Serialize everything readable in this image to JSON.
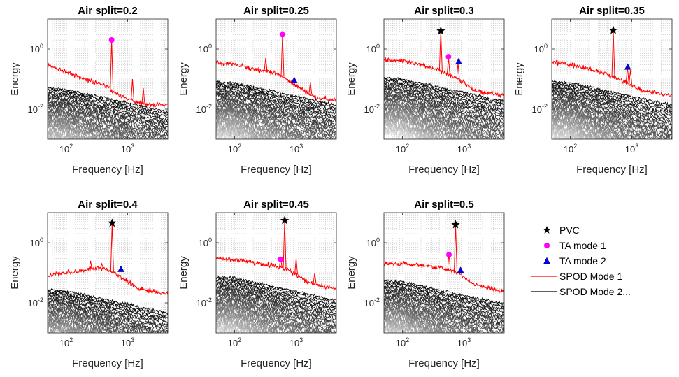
{
  "chart_data": [
    {
      "type": "line",
      "title": "Air split=0.2",
      "xlabel": "Frequency [Hz]",
      "ylabel": "Energy",
      "xscale": "log",
      "yscale": "log",
      "xlim": [
        50,
        4500
      ],
      "ylim": [
        0.001,
        10
      ],
      "xticks": [
        "10^2",
        "10^3"
      ],
      "yticks": [
        "10^-2",
        "10^0"
      ],
      "grid": true,
      "spod_mode_1": {
        "base": [
          [
            50,
            0.28
          ],
          [
            100,
            0.18
          ],
          [
            200,
            0.1
          ],
          [
            400,
            0.065
          ],
          [
            500,
            0.05
          ],
          [
            700,
            0.03
          ],
          [
            1000,
            0.022
          ],
          [
            2000,
            0.014
          ],
          [
            4000,
            0.014
          ]
        ],
        "peaks": [
          [
            550,
            2.0
          ],
          [
            1200,
            0.1
          ],
          [
            1800,
            0.05
          ]
        ]
      },
      "markers": [
        {
          "series": "TA mode 1",
          "x": 550,
          "y": 2.0
        }
      ]
    },
    {
      "type": "line",
      "title": "Air split=0.25",
      "xlabel": "Frequency [Hz]",
      "ylabel": "Energy",
      "xscale": "log",
      "yscale": "log",
      "xlim": [
        50,
        4500
      ],
      "ylim": [
        0.001,
        10
      ],
      "xticks": [
        "10^2",
        "10^3"
      ],
      "yticks": [
        "10^-2",
        "10^0"
      ],
      "grid": true,
      "spod_mode_1": {
        "base": [
          [
            50,
            0.35
          ],
          [
            100,
            0.3
          ],
          [
            200,
            0.22
          ],
          [
            400,
            0.17
          ],
          [
            600,
            0.12
          ],
          [
            1000,
            0.06
          ],
          [
            2000,
            0.025
          ],
          [
            4000,
            0.02
          ]
        ],
        "peaks": [
          [
            320,
            0.5
          ],
          [
            600,
            3.0
          ],
          [
            900,
            0.08
          ],
          [
            1700,
            0.08
          ]
        ]
      },
      "markers": [
        {
          "series": "TA mode 1",
          "x": 600,
          "y": 3.0
        },
        {
          "series": "TA mode 2",
          "x": 930,
          "y": 0.09
        }
      ]
    },
    {
      "type": "line",
      "title": "Air split=0.3",
      "xlabel": "Frequency [Hz]",
      "ylabel": "Energy",
      "xscale": "log",
      "yscale": "log",
      "xlim": [
        50,
        4500
      ],
      "ylim": [
        0.001,
        10
      ],
      "xticks": [
        "10^2",
        "10^3"
      ],
      "yticks": [
        "10^-2",
        "10^0"
      ],
      "grid": true,
      "spod_mode_1": {
        "base": [
          [
            50,
            0.45
          ],
          [
            100,
            0.4
          ],
          [
            200,
            0.3
          ],
          [
            400,
            0.2
          ],
          [
            800,
            0.1
          ],
          [
            1500,
            0.04
          ],
          [
            4000,
            0.03
          ]
        ],
        "peaks": [
          [
            420,
            4.0
          ],
          [
            560,
            0.5
          ],
          [
            800,
            0.35
          ]
        ]
      },
      "markers": [
        {
          "series": "PVC",
          "x": 420,
          "y": 4.0
        },
        {
          "series": "TA mode 1",
          "x": 560,
          "y": 0.55
        },
        {
          "series": "TA mode 2",
          "x": 820,
          "y": 0.38
        }
      ]
    },
    {
      "type": "line",
      "title": "Air split=0.35",
      "xlabel": "Frequency [Hz]",
      "ylabel": "Energy",
      "xscale": "log",
      "yscale": "log",
      "xlim": [
        50,
        4500
      ],
      "ylim": [
        0.001,
        10
      ],
      "xticks": [
        "10^2",
        "10^3"
      ],
      "yticks": [
        "10^-2",
        "10^0"
      ],
      "grid": true,
      "spod_mode_1": {
        "base": [
          [
            50,
            0.38
          ],
          [
            100,
            0.3
          ],
          [
            200,
            0.22
          ],
          [
            400,
            0.14
          ],
          [
            800,
            0.08
          ],
          [
            1500,
            0.04
          ],
          [
            4000,
            0.03
          ]
        ],
        "peaks": [
          [
            500,
            4.2
          ],
          [
            850,
            0.25
          ],
          [
            950,
            0.2
          ]
        ]
      },
      "markers": [
        {
          "series": "PVC",
          "x": 500,
          "y": 4.2
        },
        {
          "series": "TA mode 2",
          "x": 860,
          "y": 0.25
        }
      ]
    },
    {
      "type": "line",
      "title": "Air split=0.4",
      "xlabel": "Frequency [Hz]",
      "ylabel": "Energy",
      "xscale": "log",
      "yscale": "log",
      "xlim": [
        50,
        4500
      ],
      "ylim": [
        0.001,
        10
      ],
      "xticks": [
        "10^2",
        "10^3"
      ],
      "yticks": [
        "10^-2",
        "10^0"
      ],
      "grid": true,
      "spod_mode_1": {
        "base": [
          [
            50,
            0.08
          ],
          [
            100,
            0.1
          ],
          [
            200,
            0.12
          ],
          [
            350,
            0.15
          ],
          [
            500,
            0.12
          ],
          [
            800,
            0.07
          ],
          [
            1500,
            0.03
          ],
          [
            4000,
            0.02
          ]
        ],
        "peaks": [
          [
            560,
            4.5
          ],
          [
            250,
            0.25
          ],
          [
            380,
            0.2
          ],
          [
            1100,
            0.05
          ]
        ]
      },
      "markers": [
        {
          "series": "PVC",
          "x": 560,
          "y": 4.5
        },
        {
          "series": "TA mode 2",
          "x": 780,
          "y": 0.13
        }
      ]
    },
    {
      "type": "line",
      "title": "Air split=0.45",
      "xlabel": "Frequency [Hz]",
      "ylabel": "Energy",
      "xscale": "log",
      "yscale": "log",
      "xlim": [
        50,
        4500
      ],
      "ylim": [
        0.001,
        10
      ],
      "xticks": [
        "10^2",
        "10^3"
      ],
      "yticks": [
        "10^-2",
        "10^0"
      ],
      "grid": true,
      "spod_mode_1": {
        "base": [
          [
            50,
            0.3
          ],
          [
            100,
            0.27
          ],
          [
            200,
            0.22
          ],
          [
            400,
            0.18
          ],
          [
            800,
            0.12
          ],
          [
            1500,
            0.05
          ],
          [
            4000,
            0.03
          ]
        ],
        "peaks": [
          [
            650,
            5.5
          ],
          [
            560,
            0.3
          ],
          [
            1000,
            0.3
          ],
          [
            2000,
            0.1
          ]
        ]
      },
      "markers": [
        {
          "series": "PVC",
          "x": 650,
          "y": 5.5
        },
        {
          "series": "TA mode 1",
          "x": 560,
          "y": 0.28
        }
      ]
    },
    {
      "type": "line",
      "title": "Air split=0.5",
      "xlabel": "Frequency [Hz]",
      "ylabel": "Energy",
      "xscale": "log",
      "yscale": "log",
      "xlim": [
        50,
        4500
      ],
      "ylim": [
        0.001,
        10
      ],
      "xticks": [
        "10^2",
        "10^3"
      ],
      "yticks": [
        "10^-2",
        "10^0"
      ],
      "grid": true,
      "spod_mode_1": {
        "base": [
          [
            50,
            0.2
          ],
          [
            100,
            0.2
          ],
          [
            200,
            0.18
          ],
          [
            400,
            0.15
          ],
          [
            800,
            0.1
          ],
          [
            1500,
            0.04
          ],
          [
            4000,
            0.025
          ]
        ],
        "peaks": [
          [
            730,
            4.0
          ],
          [
            570,
            0.45
          ],
          [
            880,
            0.12
          ]
        ]
      },
      "markers": [
        {
          "series": "PVC",
          "x": 730,
          "y": 4.0
        },
        {
          "series": "TA mode 1",
          "x": 570,
          "y": 0.4
        },
        {
          "series": "TA mode 2",
          "x": 880,
          "y": 0.12
        }
      ]
    }
  ],
  "legend": {
    "placement": "right of bottom row",
    "items": [
      {
        "label": "PVC",
        "marker": "star",
        "color": "#000000",
        "icon": "star-icon"
      },
      {
        "label": "TA mode 1",
        "marker": "circle",
        "color": "#ff00ff",
        "icon": "circle-icon"
      },
      {
        "label": "TA mode 2",
        "marker": "triangle",
        "color": "#0000ff",
        "icon": "triangle-icon"
      },
      {
        "label": "SPOD Mode 1",
        "marker": "line",
        "color": "#ff0000",
        "icon": "line-icon"
      },
      {
        "label": "SPOD Mode 2...",
        "marker": "line",
        "color": "#000000",
        "icon": "line-icon"
      }
    ]
  },
  "colors": {
    "spod_mode_1": "#ff0000",
    "higher_modes_start": "#000000",
    "higher_modes_end": "#dddddd",
    "pvc": "#000000",
    "ta_mode_1": "#ff00ff",
    "ta_mode_2": "#0000ff"
  }
}
